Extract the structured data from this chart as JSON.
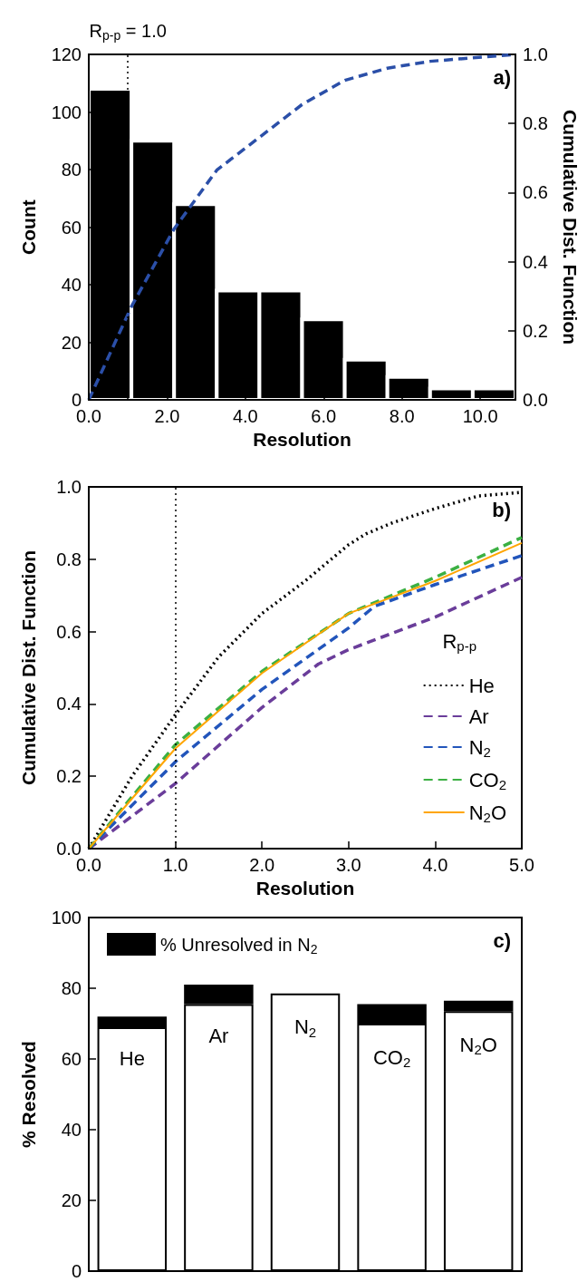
{
  "chart_data": [
    {
      "type": "histogram",
      "xlabel": "Resolution",
      "ylabel": "Count",
      "y2label": "Cumulative Dist. Function",
      "xlim": [
        0,
        10.9
      ],
      "xticks": [
        {
          "value": 0,
          "label": "0.0"
        },
        {
          "value": 2,
          "label": "2.0"
        },
        {
          "value": 4,
          "label": "4.0"
        },
        {
          "value": 6,
          "label": "6.0"
        },
        {
          "value": 8,
          "label": "8.0"
        },
        {
          "value": 10,
          "label": "10.0"
        }
      ],
      "ylim": [
        0,
        120
      ],
      "yticks": [
        0,
        20,
        40,
        60,
        80,
        100,
        120
      ],
      "y2lim": [
        0,
        1
      ],
      "y2ticks": [
        {
          "value": 0,
          "label": "0.0"
        },
        {
          "value": 0.2,
          "label": "0.2"
        },
        {
          "value": 0.4,
          "label": "0.4"
        },
        {
          "value": 0.6,
          "label": "0.6"
        },
        {
          "value": 0.8,
          "label": "0.8"
        },
        {
          "value": 1,
          "label": "1.0"
        }
      ],
      "series": [
        {
          "type": "histogram",
          "bins": [
            0,
            1.09,
            2.18,
            3.27,
            4.36,
            5.45,
            6.54,
            7.63,
            8.72,
            9.81,
            10.9
          ],
          "values": [
            108,
            90,
            68,
            38,
            38,
            28,
            14,
            8,
            4,
            4
          ],
          "color": "#000000"
        },
        {
          "type": "line",
          "axis": "y2",
          "x": [
            0,
            1.09,
            2.18,
            3.27,
            4.36,
            5.45,
            6.54,
            7.63,
            8.72,
            9.81,
            10.9
          ],
          "values": [
            0,
            0.27,
            0.495,
            0.665,
            0.76,
            0.855,
            0.925,
            0.96,
            0.98,
            0.99,
            1.0
          ],
          "color": "#2b4fa8",
          "line_style": "dashed"
        }
      ],
      "ref_lines": [
        {
          "axis": "x",
          "value": 1.0,
          "label": "R$_{p-p}$ = 1.0",
          "line_style": "dotted",
          "color": "#000000"
        }
      ],
      "annotations": [
        "a)"
      ],
      "marker": "none",
      "legend": false,
      "grid": false
    },
    {
      "type": "line",
      "xlabel": "Resolution",
      "ylabel": "Cumulative Dist. Function",
      "xlim": [
        0,
        5
      ],
      "xticks": [
        {
          "value": 0,
          "label": "0.0"
        },
        {
          "value": 1,
          "label": "1.0"
        },
        {
          "value": 2,
          "label": "2.0"
        },
        {
          "value": 3,
          "label": "3.0"
        },
        {
          "value": 4,
          "label": "4.0"
        },
        {
          "value": 5,
          "label": "5.0"
        }
      ],
      "ylim": [
        0,
        1
      ],
      "yticks": [
        {
          "value": 0,
          "label": "0.0"
        },
        {
          "value": 0.2,
          "label": "0.2"
        },
        {
          "value": 0.4,
          "label": "0.4"
        },
        {
          "value": 0.6,
          "label": "0.6"
        },
        {
          "value": 0.8,
          "label": "0.8"
        },
        {
          "value": 1,
          "label": "1.0"
        }
      ],
      "legend_title": "R$_{p-p}$",
      "legend": "bottom right",
      "marker": "none",
      "grid": false,
      "series": [
        {
          "name": "He",
          "color": "#000000",
          "line_style": "dotted",
          "x": [
            0,
            0.5,
            1,
            1.5,
            2,
            2.5,
            3,
            3.2,
            3.5,
            4,
            4.5,
            5
          ],
          "values": [
            0,
            0.2,
            0.37,
            0.53,
            0.65,
            0.74,
            0.84,
            0.87,
            0.9,
            0.94,
            0.975,
            0.985
          ]
        },
        {
          "name": "Ar",
          "color": "#6a3d9a",
          "line_style": "dashed",
          "x": [
            0,
            1,
            2,
            2.65,
            3,
            4,
            5
          ],
          "values": [
            0,
            0.18,
            0.39,
            0.51,
            0.55,
            0.64,
            0.75
          ]
        },
        {
          "name": "N$_{2}$",
          "color": "#2255bb",
          "line_style": "dashed",
          "x": [
            0,
            1,
            2,
            3,
            3.3,
            4,
            5
          ],
          "values": [
            0,
            0.24,
            0.44,
            0.61,
            0.67,
            0.73,
            0.81
          ]
        },
        {
          "name": "CO$_{2}$",
          "color": "#3cb043",
          "line_style": "dashed",
          "x": [
            0,
            1,
            2,
            3,
            4,
            5
          ],
          "values": [
            0,
            0.287,
            0.49,
            0.65,
            0.75,
            0.86
          ]
        },
        {
          "name": "N$_{2}$O",
          "color": "#ffa500",
          "line_style": "solid",
          "x": [
            0,
            1,
            2,
            3,
            4,
            5
          ],
          "values": [
            0,
            0.277,
            0.485,
            0.65,
            0.74,
            0.845
          ]
        }
      ],
      "ref_lines": [
        {
          "axis": "x",
          "value": 1.0,
          "line_style": "dotted",
          "color": "#000000"
        }
      ],
      "annotations": [
        "b)"
      ]
    },
    {
      "type": "bar",
      "ylabel": "% Resolved",
      "categories": [
        "He",
        "Ar",
        "N$_{2}$",
        "CO$_{2}$",
        "N$_{2}$O"
      ],
      "ylim": [
        0,
        100
      ],
      "yticks": [
        0,
        20,
        40,
        60,
        80,
        100
      ],
      "stacked": true,
      "legend": "top left",
      "tick_labels": "y",
      "grid": false,
      "series": [
        {
          "color": "#ffffff",
          "values": [
            69,
            75.5,
            78.5,
            70,
            73.5
          ]
        },
        {
          "name": "% Unresolved in N$_{2}$",
          "color": "#000000",
          "values": [
            3,
            5.5,
            0,
            5.5,
            3
          ]
        }
      ],
      "annotations": [
        "c)"
      ]
    }
  ]
}
